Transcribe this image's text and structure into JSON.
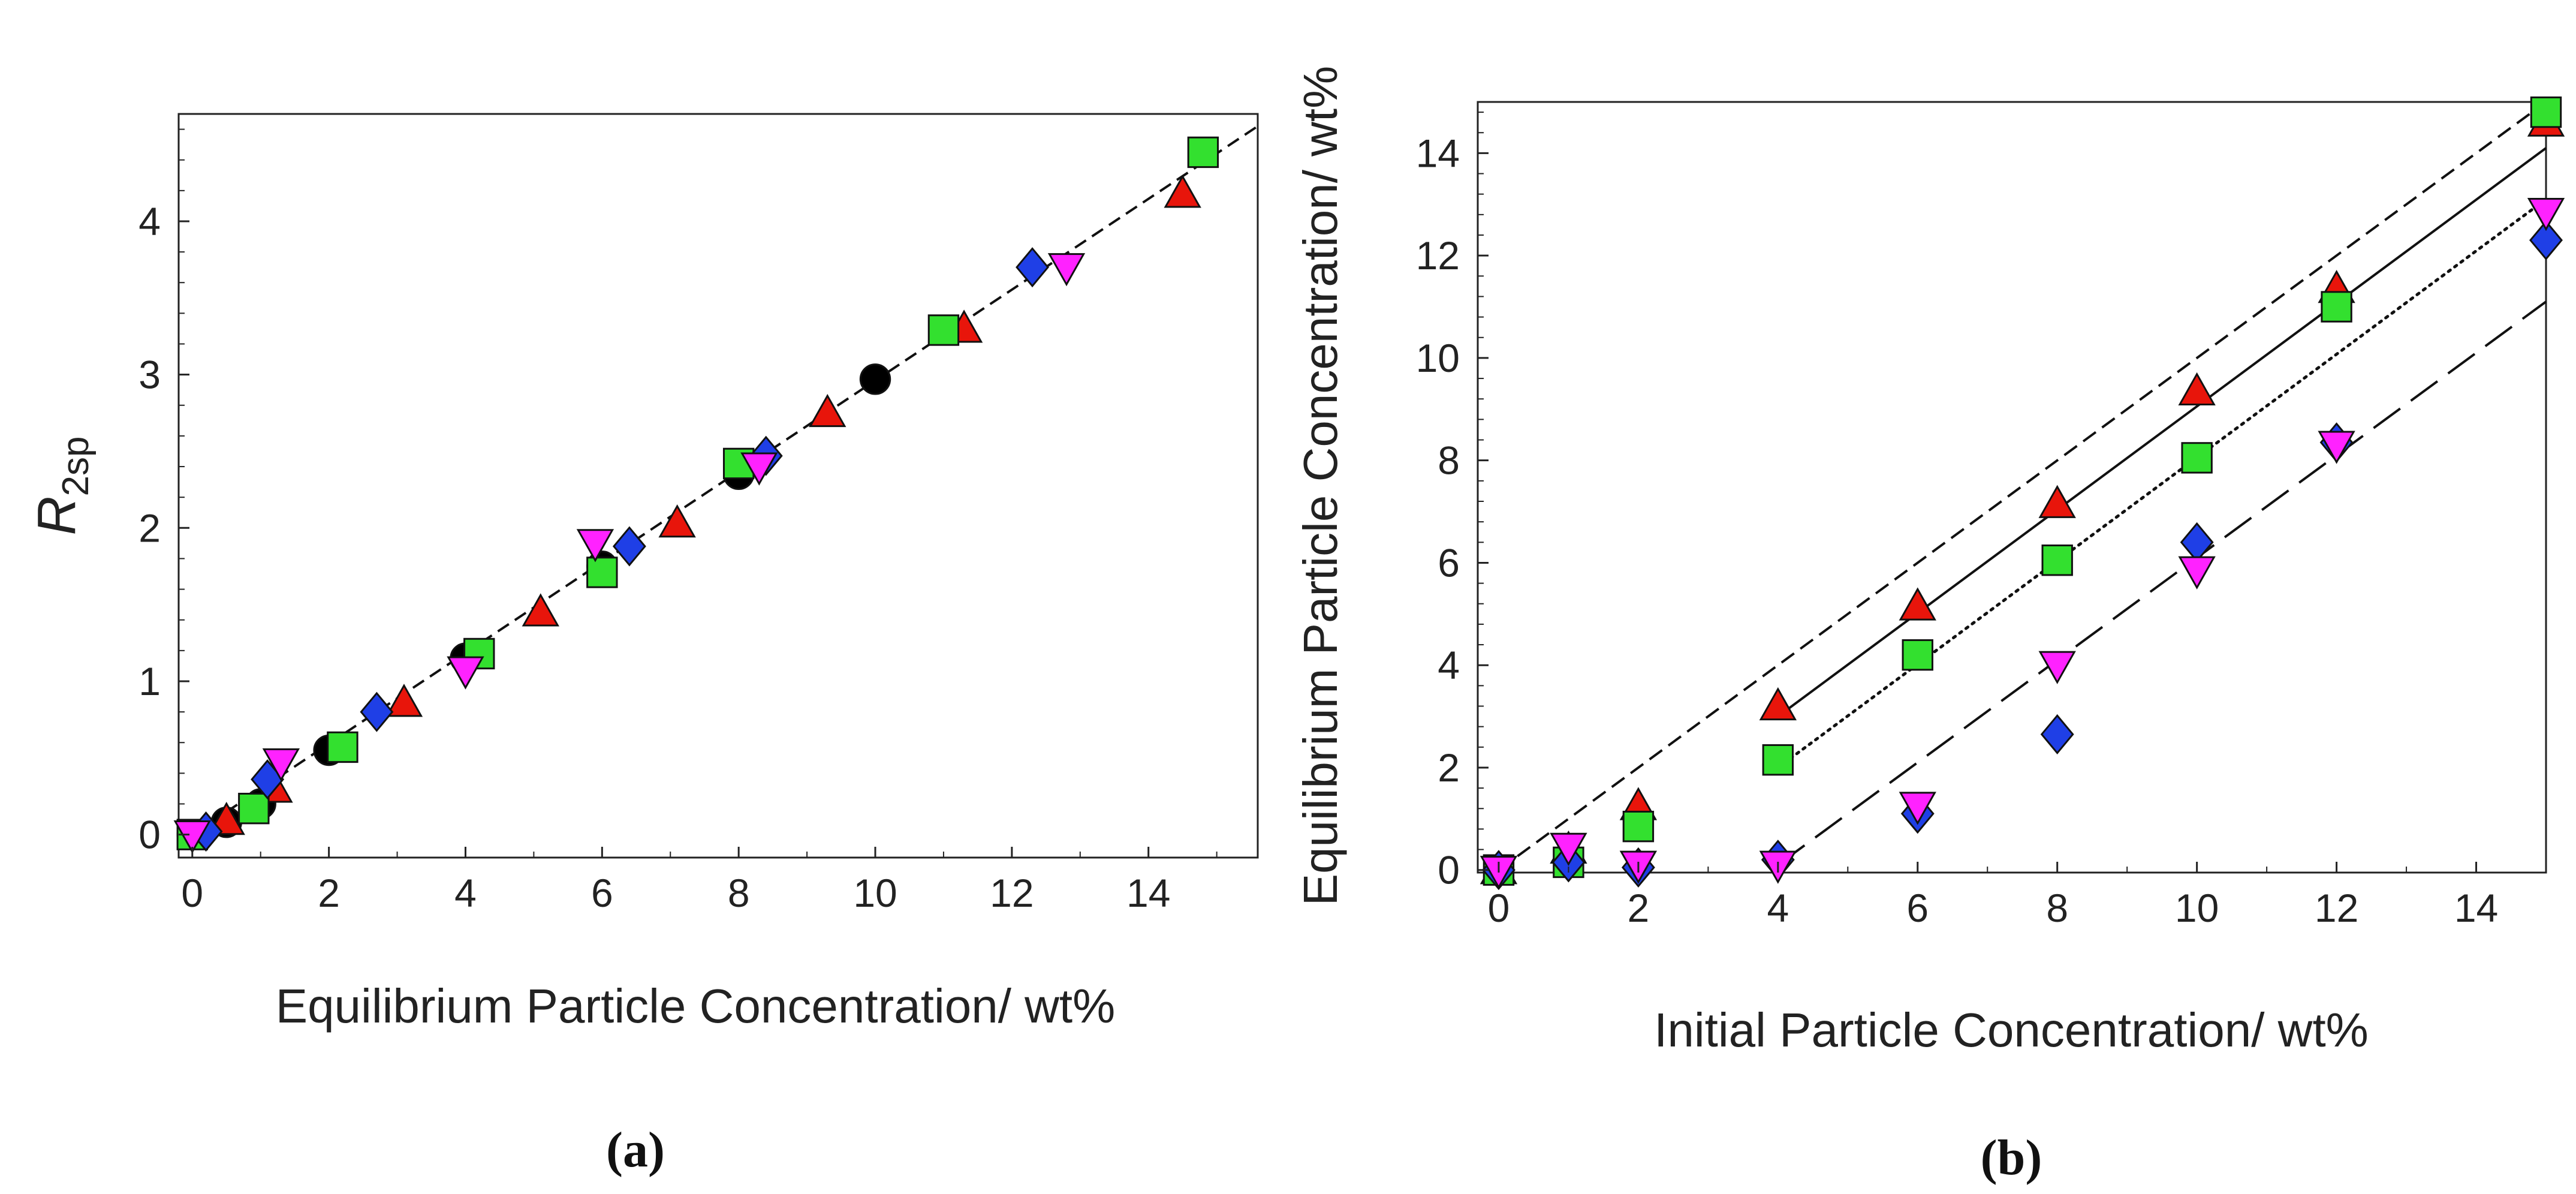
{
  "panel_labels": {
    "a": "(a)",
    "b": "(b)"
  },
  "chart_data": [
    {
      "id": "a",
      "type": "scatter",
      "xlabel": "Equilibrium Particle Concentration/ wt%",
      "ylabel_main": "R",
      "ylabel_sub": "2sp",
      "xlim": [
        -0.2,
        15.6
      ],
      "ylim": [
        -0.15,
        4.7
      ],
      "xticks": [
        0,
        2,
        4,
        6,
        8,
        10,
        12,
        14
      ],
      "xtick_labels": [
        "0",
        "2",
        "4",
        "6",
        "8",
        "10",
        "12",
        "14"
      ],
      "yticks": [
        0,
        1,
        2,
        3,
        4
      ],
      "ytick_labels": [
        "0",
        "1",
        "2",
        "3",
        "4"
      ],
      "fit_lines": [
        {
          "name": "linear fit",
          "style": "dashed",
          "x": [
            0,
            15.6
          ],
          "y": [
            0,
            4.62
          ]
        }
      ],
      "series": [
        {
          "name": "black circles",
          "marker": "circle",
          "color": "#000000",
          "x": [
            0,
            0.5,
            1,
            2,
            4,
            6,
            8,
            10
          ],
          "y": [
            0,
            0.08,
            0.2,
            0.55,
            1.15,
            1.75,
            2.35,
            2.97
          ]
        },
        {
          "name": "red up-triangles",
          "marker": "triangle-up",
          "color": "#e8150b",
          "x": [
            0.5,
            1.2,
            3.1,
            5.1,
            7.1,
            9.3,
            11.3,
            14.5
          ],
          "y": [
            0.09,
            0.3,
            0.86,
            1.45,
            2.03,
            2.75,
            3.3,
            4.18
          ]
        },
        {
          "name": "green squares",
          "marker": "square",
          "color": "#33e02f",
          "x": [
            0,
            0.9,
            2.2,
            4.2,
            6.0,
            8.0,
            11.0,
            14.8
          ],
          "y": [
            0,
            0.17,
            0.57,
            1.18,
            1.71,
            2.42,
            3.29,
            4.45
          ]
        },
        {
          "name": "blue diamonds",
          "marker": "diamond",
          "color": "#1f3fe6",
          "x": [
            0.2,
            1.1,
            2.7,
            6.4,
            8.4,
            12.3
          ],
          "y": [
            0.02,
            0.36,
            0.8,
            1.88,
            2.47,
            3.7
          ]
        },
        {
          "name": "magenta down-triangles",
          "marker": "triangle-down",
          "color": "#ff22ff",
          "x": [
            0,
            1.3,
            4.0,
            5.9,
            8.3,
            12.8
          ],
          "y": [
            0,
            0.47,
            1.07,
            1.9,
            2.4,
            3.7
          ]
        }
      ]
    },
    {
      "id": "b",
      "type": "scatter",
      "xlabel": "Initial Particle Concentration/ wt%",
      "ylabel": "Equilibrium Particle Concentration/ wt%",
      "xlim": [
        -0.3,
        15
      ],
      "ylim": [
        -0.05,
        15
      ],
      "xticks": [
        0,
        2,
        4,
        6,
        8,
        10,
        12,
        14
      ],
      "xtick_labels": [
        "0",
        "2",
        "4",
        "6",
        "8",
        "10",
        "12",
        "14"
      ],
      "yticks": [
        0,
        2,
        4,
        6,
        8,
        10,
        12,
        14
      ],
      "ytick_labels": [
        "0",
        "2",
        "4",
        "6",
        "8",
        "10",
        "12",
        "14"
      ],
      "fit_lines": [
        {
          "name": "y = x",
          "style": "shortdash",
          "x": [
            0,
            15
          ],
          "y": [
            0,
            15
          ]
        },
        {
          "name": "solid fit",
          "style": "solid",
          "x": [
            4,
            15
          ],
          "y": [
            3.0,
            14.1
          ]
        },
        {
          "name": "dotted fit",
          "style": "dotted",
          "x": [
            4,
            15
          ],
          "y": [
            2.0,
            13.1
          ]
        },
        {
          "name": "long dash fit",
          "style": "longdash",
          "x": [
            4,
            15
          ],
          "y": [
            0.1,
            11.1
          ]
        }
      ],
      "series": [
        {
          "name": "red up-triangles",
          "marker": "triangle-up",
          "color": "#e8150b",
          "x": [
            0,
            1,
            2,
            4,
            6,
            8,
            10,
            12,
            15
          ],
          "y": [
            0,
            0.4,
            1.25,
            3.2,
            5.15,
            7.15,
            9.35,
            11.35,
            14.6
          ]
        },
        {
          "name": "green squares",
          "marker": "square",
          "color": "#33e02f",
          "x": [
            0,
            1,
            2,
            4,
            6,
            8,
            10,
            12,
            15
          ],
          "y": [
            0,
            0.15,
            0.85,
            2.15,
            4.2,
            6.05,
            8.05,
            11.0,
            14.8
          ]
        },
        {
          "name": "blue diamonds",
          "marker": "diamond",
          "color": "#1f3fe6",
          "x": [
            0,
            1,
            2,
            4,
            6,
            8,
            10,
            12,
            15
          ],
          "y": [
            0,
            0.15,
            0.05,
            0.2,
            1.1,
            2.65,
            6.4,
            8.35,
            12.3
          ]
        },
        {
          "name": "magenta down-triangles",
          "marker": "triangle-down",
          "color": "#ff22ff",
          "x": [
            0,
            1,
            2,
            4,
            6,
            8,
            10,
            12,
            15
          ],
          "y": [
            0,
            0.45,
            0.1,
            0.1,
            1.25,
            4.0,
            5.85,
            8.3,
            12.85
          ]
        }
      ]
    }
  ]
}
